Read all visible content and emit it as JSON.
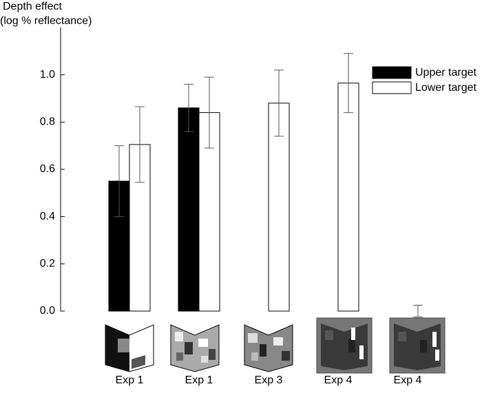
{
  "chart_data": {
    "type": "bar",
    "ylabel": [
      "Depth effect",
      "(log % reflectance)"
    ],
    "categories": [
      "Exp 1",
      "Exp 1",
      "Exp 3",
      "Exp 4",
      "Exp 4"
    ],
    "series": [
      {
        "name": "Upper target",
        "color": "#000000",
        "values": [
          0.55,
          0.86,
          null,
          null,
          null
        ],
        "errors": [
          0.15,
          0.1,
          null,
          null,
          null
        ]
      },
      {
        "name": "Lower target",
        "color": "#ffffff",
        "values": [
          0.705,
          0.84,
          0.88,
          0.965,
          0.0
        ],
        "errors": [
          0.16,
          0.15,
          0.14,
          0.125,
          0.025
        ]
      }
    ],
    "ylim": [
      0,
      1.2
    ],
    "yticks": [
      {
        "value": 0,
        "label": "0.0"
      },
      0.2,
      0.4,
      0.6,
      0.8,
      {
        "value": 1,
        "label": "1.0"
      }
    ],
    "legend": "upper-right"
  }
}
